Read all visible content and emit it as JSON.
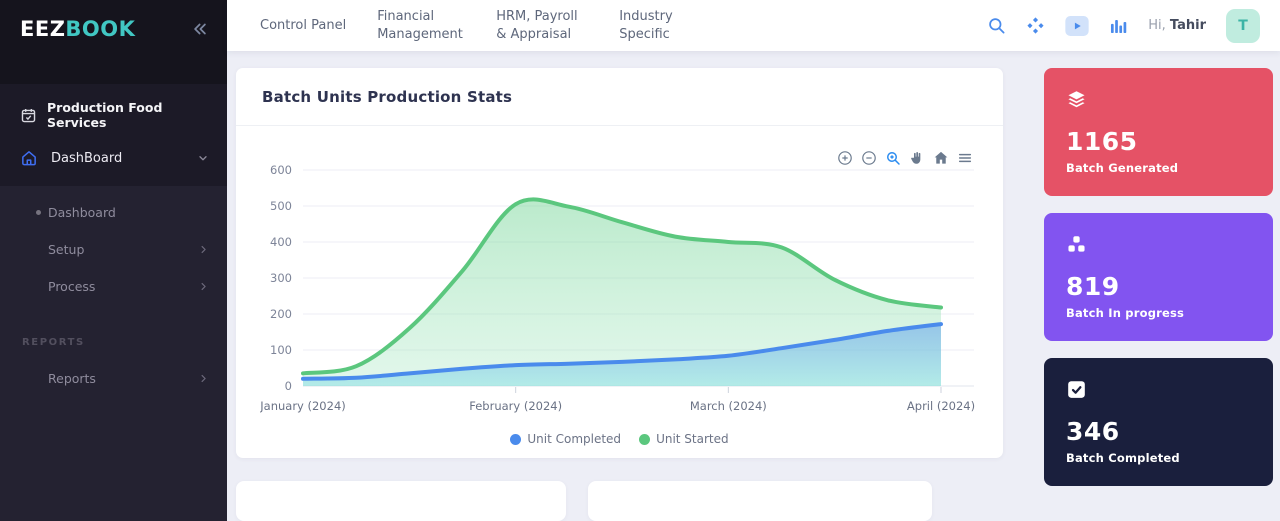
{
  "brand": {
    "primary": "EEZ",
    "secondary": "BOOK",
    "secondary_color": "#41c7c3"
  },
  "sidebar": {
    "module": {
      "icon": "calendar-check-icon",
      "label": "Production Food Services"
    },
    "nav": {
      "icon": "home-icon",
      "label": "DashBoard",
      "state": "expanded",
      "children": [
        {
          "label": "Dashboard",
          "active": true
        },
        {
          "label": "Setup",
          "has_children": true
        },
        {
          "label": "Process",
          "has_children": true
        }
      ]
    },
    "section": "REPORTS",
    "reports": {
      "label": "Reports",
      "has_children": true
    }
  },
  "topnav": {
    "menu": [
      "Control Panel",
      "Financial Management",
      "HRM, Payroll & Appraisal",
      "Industry Specific"
    ],
    "action_icons": [
      "search-icon",
      "apps-icon",
      "video-icon",
      "stats-icon"
    ],
    "greeting": "Hi,",
    "username": "Tahir",
    "avatar_initial": "T",
    "avatar_bg": "#c0ecdf"
  },
  "chart_card": {
    "title": "Batch Units Production Stats",
    "toolbar_icons": [
      "zoom-in-icon",
      "zoom-out-icon",
      "selection-zoom-icon",
      "pan-icon",
      "reset-zoom-icon",
      "menu-icon"
    ]
  },
  "chart_data": {
    "type": "area",
    "title": "Batch Units Production Stats",
    "x_categories": [
      "January (2024)",
      "February (2024)",
      "March (2024)",
      "April (2024)"
    ],
    "y_ticks": [
      0,
      100,
      200,
      300,
      400,
      500,
      600
    ],
    "ylim": [
      0,
      600
    ],
    "grid": true,
    "legend_position": "bottom",
    "series": [
      {
        "name": "Unit Completed",
        "color": "#4a8bec",
        "values": [
          20,
          23,
          35,
          48,
          58,
          62,
          67,
          74,
          84,
          105,
          128,
          153,
          172
        ]
      },
      {
        "name": "Unit Started",
        "color": "#5bc77e",
        "values": [
          35,
          55,
          160,
          320,
          505,
          498,
          455,
          415,
          400,
          385,
          295,
          238,
          218
        ]
      }
    ]
  },
  "stat_cards": [
    {
      "icon": "layers-icon",
      "value": "1165",
      "label": "Batch Generated",
      "bg": "#e55266"
    },
    {
      "icon": "boxes-icon",
      "value": "819",
      "label": "Batch In progress",
      "bg": "#8254f0"
    },
    {
      "icon": "check-square-icon",
      "value": "346",
      "label": "Batch Completed",
      "bg": "#1a1f3d"
    }
  ]
}
